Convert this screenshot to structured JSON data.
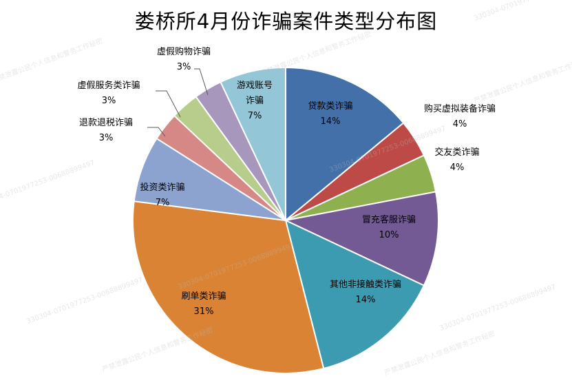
{
  "chart_data": {
    "type": "pie",
    "title": "娄桥所4月份诈骗案件类型分布图",
    "slices": [
      {
        "label": "贷款类诈骗",
        "value": 14,
        "percent_text": "14%",
        "color": "#4470aa"
      },
      {
        "label": "购买虚拟装备诈骗",
        "value": 4,
        "percent_text": "4%",
        "color": "#be4a47"
      },
      {
        "label": "交友类诈骗",
        "value": 4,
        "percent_text": "4%",
        "color": "#8fb04f"
      },
      {
        "label": "冒充客服诈骗",
        "value": 10,
        "percent_text": "10%",
        "color": "#735a95"
      },
      {
        "label": "其他非接触类诈骗",
        "value": 14,
        "percent_text": "14%",
        "color": "#3d9bb1"
      },
      {
        "label": "刷单类诈骗",
        "value": 31,
        "percent_text": "31%",
        "color": "#da8335"
      },
      {
        "label": "投资类诈骗",
        "value": 7,
        "percent_text": "7%",
        "color": "#8ca3d0"
      },
      {
        "label": "退款退税诈骗",
        "value": 3,
        "percent_text": "3%",
        "color": "#d58885"
      },
      {
        "label": "虚假服务类诈骗",
        "value": 3,
        "percent_text": "3%",
        "color": "#b8cd8c"
      },
      {
        "label": "虚假购物诈骗",
        "value": 3,
        "percent_text": "3%",
        "color": "#a797bd"
      },
      {
        "label": "游戏账号诈骗",
        "value": 7,
        "percent_text": "7%",
        "color": "#93c6d6"
      }
    ]
  },
  "watermarks": [
    "严禁泄露公民个人信息和警务工作秘密",
    "330304-0701977253-00688899497"
  ]
}
